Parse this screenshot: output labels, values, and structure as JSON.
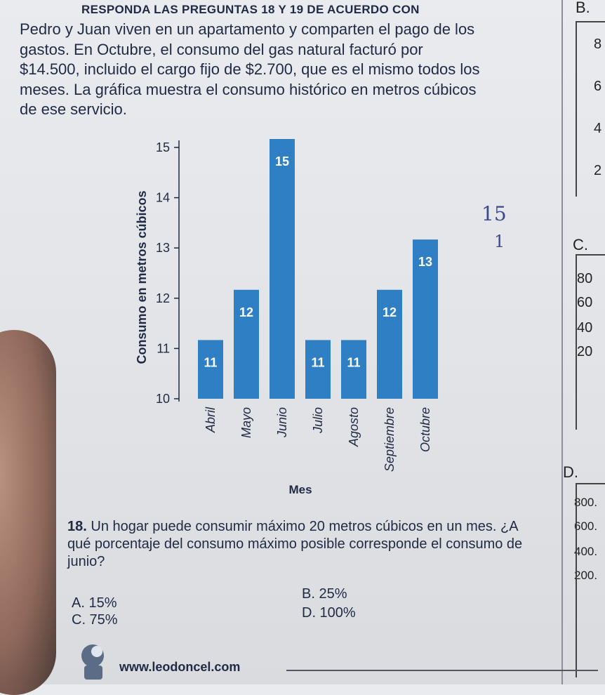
{
  "header": "RESPONDA LAS PREGUNTAS 18 Y 19 DE ACUERDO CON",
  "intro": [
    "Pedro y Juan viven en un apartamento y comparten el pago de los",
    "gastos. En Octubre, el consumo del gas natural facturó por",
    "$14.500, incluido el cargo fijo de $2.700, que es el mismo todos los",
    "meses. La gráfica muestra el consumo histórico en metros cúbicos",
    "de ese servicio."
  ],
  "chart_data": {
    "type": "bar",
    "categories": [
      "Abril",
      "Mayo",
      "Junio",
      "Julio",
      "Agosto",
      "Septiembre",
      "Octubre"
    ],
    "values": [
      11,
      12,
      15,
      11,
      11,
      12,
      13
    ],
    "xlabel": "Mes",
    "ylabel": "Consumo en metros cúbicos",
    "ylim": [
      10,
      15
    ],
    "yticks": [
      "10",
      "11",
      "12",
      "13",
      "14",
      "15"
    ],
    "bar_color": "#2e7fc4"
  },
  "question": {
    "number": "18.",
    "text": "Un hogar puede consumir máximo 20 metros cúbicos en un mes. ¿A qué porcentaje del consumo máximo posible corresponde el consumo de junio?",
    "options": {
      "A": "A. 15%",
      "B": "B. 25%",
      "C": "C. 75%",
      "D": "D. 100%"
    }
  },
  "handwritten": {
    "top": "15",
    "bottom": "1"
  },
  "side_panel": {
    "B": "B.",
    "C": "C.",
    "D": "D.",
    "b_values": [
      "8",
      "6",
      "4",
      "2"
    ],
    "c_values": [
      "80",
      "60",
      "40",
      "20"
    ],
    "d_values": [
      "800.",
      "600.",
      "400.",
      "200."
    ]
  },
  "footer": "www.leodoncel.com"
}
